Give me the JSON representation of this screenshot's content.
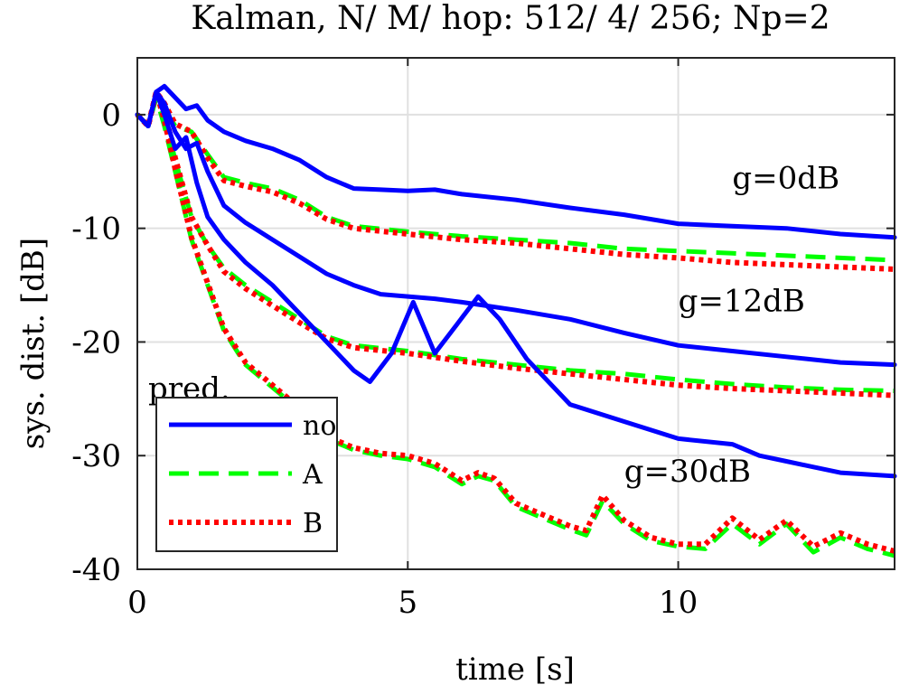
{
  "chart_data": {
    "type": "line",
    "title": "Kalman, N/ M/ hop: 512/ 4/ 256; Np=2",
    "xlabel": "time [s]",
    "ylabel": "sys. dist. [dB]",
    "xlim": [
      0,
      14
    ],
    "ylim": [
      -40,
      5
    ],
    "xticks": [
      0,
      5,
      10
    ],
    "xtick_labels": [
      "0",
      "5",
      "10"
    ],
    "yticks": [
      0,
      -10,
      -20,
      -30,
      -40
    ],
    "ytick_labels": [
      "0",
      "-10",
      "-20",
      "-30",
      "-40"
    ],
    "grid": true,
    "legend_position": "lower-left",
    "legend": [
      {
        "key": "no",
        "label": "no",
        "color": "#0000ff",
        "style": "solid"
      },
      {
        "key": "A",
        "label": "A",
        "color": "#00ff00",
        "style": "dashed"
      },
      {
        "key": "B",
        "label": "B",
        "color": "#ff0000",
        "style": "dotted"
      }
    ],
    "annotations": [
      {
        "text": "g=0dB",
        "x": 11.0,
        "y": -6.5
      },
      {
        "text": "g=12dB",
        "x": 10.0,
        "y": -17.3
      },
      {
        "text": "g=30dB",
        "x": 9.0,
        "y": -32.3
      },
      {
        "text": "pred.",
        "x": 0.2,
        "y": -25.0
      }
    ],
    "series": [
      {
        "legend": "no",
        "group": "g=0dB",
        "x": [
          0,
          0.2,
          0.35,
          0.5,
          0.7,
          0.9,
          1.1,
          1.3,
          1.6,
          2.0,
          2.5,
          3.0,
          3.5,
          4.0,
          4.5,
          5.0,
          5.5,
          6.0,
          7.0,
          8.0,
          9.0,
          10.0,
          11.0,
          12.0,
          13.0,
          14.0
        ],
        "y": [
          0,
          -1.0,
          2.0,
          2.5,
          1.5,
          0.5,
          0.8,
          -0.5,
          -1.5,
          -2.3,
          -3.0,
          -4.0,
          -5.5,
          -6.5,
          -6.6,
          -6.7,
          -6.6,
          -7.0,
          -7.5,
          -8.2,
          -8.8,
          -9.6,
          -9.8,
          -10.0,
          -10.5,
          -10.8
        ]
      },
      {
        "legend": "A",
        "group": "g=0dB",
        "x": [
          0,
          0.2,
          0.35,
          0.5,
          0.7,
          1.0,
          1.3,
          1.6,
          2.0,
          2.5,
          3.0,
          3.5,
          4.0,
          5.0,
          6.0,
          7.0,
          8.0,
          9.0,
          10.0,
          11.0,
          12.0,
          13.0,
          14.0
        ],
        "y": [
          0,
          -1.0,
          1.5,
          0.5,
          -1.0,
          -1.5,
          -3.5,
          -5.5,
          -6.0,
          -6.5,
          -7.5,
          -9.0,
          -9.8,
          -10.3,
          -10.7,
          -11.0,
          -11.3,
          -11.8,
          -12.0,
          -12.2,
          -12.4,
          -12.6,
          -12.8
        ]
      },
      {
        "legend": "B",
        "group": "g=0dB",
        "x": [
          0,
          0.2,
          0.35,
          0.5,
          0.7,
          1.0,
          1.3,
          1.6,
          2.0,
          2.5,
          3.0,
          3.5,
          4.0,
          5.0,
          6.0,
          7.0,
          8.0,
          9.0,
          10.0,
          11.0,
          12.0,
          13.0,
          14.0
        ],
        "y": [
          0,
          -1.0,
          2.0,
          1.0,
          -0.8,
          -1.5,
          -3.8,
          -5.8,
          -6.3,
          -6.8,
          -7.8,
          -9.2,
          -10.0,
          -10.5,
          -11.0,
          -11.3,
          -11.8,
          -12.3,
          -12.6,
          -13.0,
          -13.2,
          -13.4,
          -13.6
        ]
      },
      {
        "legend": "no",
        "group": "g=12dB",
        "x": [
          0,
          0.2,
          0.35,
          0.5,
          0.7,
          0.9,
          1.1,
          1.3,
          1.6,
          2.0,
          2.5,
          3.0,
          3.5,
          4.0,
          4.5,
          5.0,
          5.5,
          6.0,
          7.0,
          8.0,
          9.0,
          10.0,
          11.0,
          12.0,
          13.0,
          14.0
        ],
        "y": [
          0,
          -1.0,
          2.0,
          1.0,
          -1.5,
          -3.0,
          -2.5,
          -5.0,
          -8.0,
          -9.5,
          -11.0,
          -12.5,
          -14.0,
          -15.0,
          -15.8,
          -16.0,
          -16.2,
          -16.5,
          -17.2,
          -18.0,
          -19.2,
          -20.3,
          -20.8,
          -21.3,
          -21.8,
          -22.0
        ]
      },
      {
        "legend": "A",
        "group": "g=12dB",
        "x": [
          0,
          0.2,
          0.35,
          0.5,
          0.7,
          1.0,
          1.3,
          1.6,
          2.0,
          2.5,
          3.0,
          3.5,
          4.0,
          5.0,
          6.0,
          7.0,
          8.0,
          9.0,
          10.0,
          11.0,
          12.0,
          13.0,
          14.0
        ],
        "y": [
          0,
          -1.0,
          1.5,
          0.0,
          -4.0,
          -9.0,
          -11.5,
          -13.5,
          -15.0,
          -16.5,
          -18.0,
          -19.5,
          -20.3,
          -20.8,
          -21.5,
          -22.0,
          -22.5,
          -22.8,
          -23.3,
          -23.7,
          -24.0,
          -24.2,
          -24.3
        ]
      },
      {
        "legend": "B",
        "group": "g=12dB",
        "x": [
          0,
          0.2,
          0.35,
          0.5,
          0.7,
          1.0,
          1.3,
          1.6,
          2.0,
          2.5,
          3.0,
          3.5,
          4.0,
          5.0,
          6.0,
          7.0,
          8.0,
          9.0,
          10.0,
          11.0,
          12.0,
          13.0,
          14.0
        ],
        "y": [
          0,
          -1.0,
          2.0,
          0.5,
          -3.8,
          -9.0,
          -11.5,
          -13.8,
          -15.3,
          -16.8,
          -18.3,
          -19.7,
          -20.5,
          -21.0,
          -21.7,
          -22.3,
          -22.8,
          -23.3,
          -23.8,
          -24.1,
          -24.3,
          -24.5,
          -24.7
        ]
      },
      {
        "legend": "no",
        "group": "g=30dB",
        "x": [
          0,
          0.2,
          0.35,
          0.5,
          0.7,
          0.9,
          1.1,
          1.3,
          1.6,
          2.0,
          2.5,
          3.0,
          3.5,
          4.0,
          4.3,
          4.7,
          5.1,
          5.5,
          5.9,
          6.3,
          6.7,
          7.2,
          8.0,
          9.0,
          10.0,
          11.0,
          11.5,
          12.0,
          12.5,
          13.0,
          14.0
        ],
        "y": [
          0,
          -1.0,
          2.0,
          0.0,
          -3.0,
          -2.0,
          -6.0,
          -9.0,
          -11.0,
          -13.0,
          -15.0,
          -17.5,
          -20.0,
          -22.5,
          -23.5,
          -21.0,
          -16.5,
          -21.0,
          -18.5,
          -16.0,
          -18.0,
          -21.5,
          -25.5,
          -27.0,
          -28.5,
          -29.0,
          -30.0,
          -30.5,
          -31.0,
          -31.5,
          -31.8
        ]
      },
      {
        "legend": "A",
        "group": "g=30dB",
        "x": [
          0,
          0.2,
          0.35,
          0.5,
          0.7,
          1.0,
          1.3,
          1.6,
          2.0,
          2.5,
          3.0,
          3.5,
          4.0,
          4.5,
          5.0,
          5.5,
          6.0,
          6.3,
          6.6,
          7.0,
          7.5,
          8.0,
          8.3,
          8.6,
          9.0,
          9.5,
          10.0,
          10.5,
          11.0,
          11.5,
          12.0,
          12.5,
          13.0,
          13.5,
          14.0
        ],
        "y": [
          0,
          -1.0,
          1.5,
          -1.0,
          -5.0,
          -11.0,
          -15.0,
          -19.0,
          -22.0,
          -24.0,
          -26.0,
          -28.5,
          -29.5,
          -30.0,
          -30.3,
          -31.0,
          -32.5,
          -31.8,
          -32.2,
          -34.5,
          -35.5,
          -36.5,
          -37.0,
          -34.0,
          -36.0,
          -37.5,
          -38.0,
          -38.2,
          -36.0,
          -37.8,
          -36.0,
          -38.5,
          -37.2,
          -38.2,
          -38.8
        ]
      },
      {
        "legend": "B",
        "group": "g=30dB",
        "x": [
          0,
          0.2,
          0.35,
          0.5,
          0.7,
          1.0,
          1.3,
          1.6,
          2.0,
          2.5,
          3.0,
          3.5,
          4.0,
          4.5,
          5.0,
          5.5,
          6.0,
          6.3,
          6.6,
          7.0,
          7.5,
          8.0,
          8.3,
          8.6,
          9.0,
          9.5,
          10.0,
          10.5,
          11.0,
          11.5,
          12.0,
          12.5,
          13.0,
          13.5,
          14.0
        ],
        "y": [
          0,
          -1.0,
          2.0,
          -0.5,
          -4.8,
          -10.8,
          -14.8,
          -18.8,
          -21.8,
          -23.8,
          -25.8,
          -28.3,
          -29.3,
          -29.8,
          -30.0,
          -30.7,
          -32.2,
          -31.5,
          -32.0,
          -34.2,
          -35.2,
          -36.2,
          -36.6,
          -33.5,
          -35.7,
          -37.2,
          -37.8,
          -37.8,
          -35.5,
          -37.4,
          -35.7,
          -38.0,
          -36.8,
          -37.8,
          -38.4
        ]
      }
    ]
  }
}
